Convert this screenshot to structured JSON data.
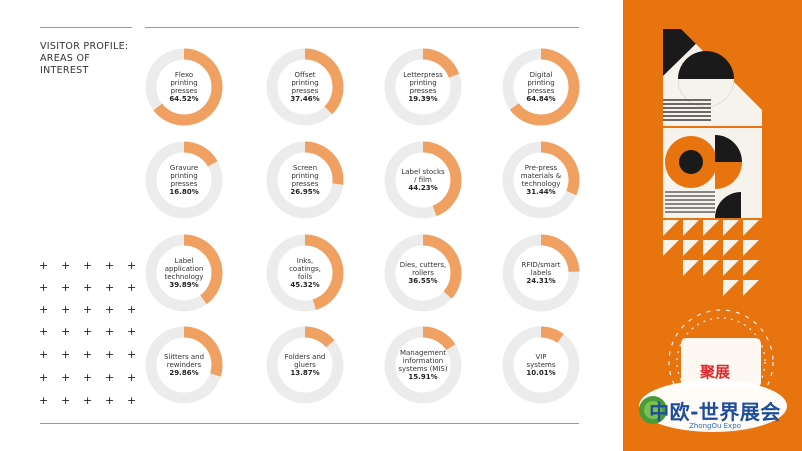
{
  "heading": {
    "line1": "VISITOR PROFILE:",
    "line2": "AREAS OF",
    "line3": "INTEREST"
  },
  "colors": {
    "accent": "#f0a060",
    "track": "#ececec",
    "panel": "#e8740f",
    "rule": "#e8813a"
  },
  "chart_data": {
    "type": "pie",
    "variant": "donut-grid",
    "title": "VISITOR PROFILE: AREAS OF INTEREST",
    "items": [
      {
        "lines": [
          "Flexo",
          "printing",
          "presses"
        ],
        "value": 64.52,
        "label": "64.52%"
      },
      {
        "lines": [
          "Offset",
          "printing",
          "presses"
        ],
        "value": 37.46,
        "label": "37.46%"
      },
      {
        "lines": [
          "Letterpress",
          "printing",
          "presses"
        ],
        "value": 19.39,
        "label": "19.39%"
      },
      {
        "lines": [
          "Digital",
          "printing",
          "presses"
        ],
        "value": 64.84,
        "label": "64.84%"
      },
      {
        "lines": [
          "Gravure",
          "printing",
          "presses"
        ],
        "value": 16.8,
        "label": "16.80%"
      },
      {
        "lines": [
          "Screen",
          "printing",
          "presses"
        ],
        "value": 26.95,
        "label": "26.95%"
      },
      {
        "lines": [
          "Label stocks",
          "/ film"
        ],
        "value": 44.23,
        "label": "44.23%"
      },
      {
        "lines": [
          "Pre-press",
          "materials &",
          "technology"
        ],
        "value": 31.44,
        "label": "31.44%"
      },
      {
        "lines": [
          "Label",
          "application",
          "technology"
        ],
        "value": 39.89,
        "label": "39.89%"
      },
      {
        "lines": [
          "Inks,",
          "coatings,",
          "foils"
        ],
        "value": 45.32,
        "label": "45.32%"
      },
      {
        "lines": [
          "Dies, cutters,",
          "rollers"
        ],
        "value": 36.55,
        "label": "36.55%"
      },
      {
        "lines": [
          "RFID/smart",
          "labels"
        ],
        "value": 24.31,
        "label": "24.31%"
      },
      {
        "lines": [
          "Slitters and",
          "rewinders"
        ],
        "value": 29.86,
        "label": "29.86%"
      },
      {
        "lines": [
          "Folders and",
          "gluers"
        ],
        "value": 13.87,
        "label": "13.87%"
      },
      {
        "lines": [
          "Management",
          "information",
          "systems (MIS)"
        ],
        "value": 15.91,
        "label": "15.91%"
      },
      {
        "lines": [
          "VIP",
          "systems"
        ],
        "value": 10.01,
        "label": "10.01%"
      }
    ]
  },
  "plus_glyph": "+",
  "logo": {
    "badge": "聚展",
    "name": "中欧-世界展会",
    "sub": "ZhongOu Expo"
  }
}
